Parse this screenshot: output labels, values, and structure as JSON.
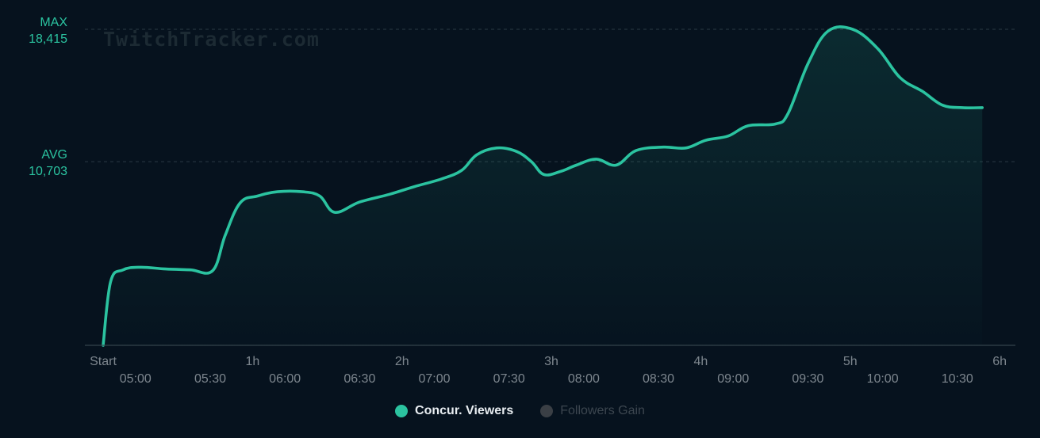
{
  "watermark": "TwitchTracker.com",
  "colors": {
    "background": "#06121e",
    "line": "#2bc3a0",
    "grid": "#2a3a44",
    "label": "#2bc3a0",
    "tick": "#7d868e",
    "inactive": "#3c464f"
  },
  "chart_data": {
    "type": "area",
    "ref_lines": [
      {
        "label": "MAX",
        "value_label": "18,415",
        "value": 18415
      },
      {
        "label": "AVG",
        "value_label": "10,703",
        "value": 10703
      }
    ],
    "ylim": [
      0,
      18415
    ],
    "xlim_minutes": [
      0,
      370
    ],
    "x_ticks_elapsed": [
      {
        "label": "Start",
        "minute": 0
      },
      {
        "label": "1h",
        "minute": 60
      },
      {
        "label": "2h",
        "minute": 120
      },
      {
        "label": "3h",
        "minute": 180
      },
      {
        "label": "4h",
        "minute": 240
      },
      {
        "label": "5h",
        "minute": 300
      },
      {
        "label": "6h",
        "minute": 360
      }
    ],
    "x_ticks_clock": [
      {
        "label": "05:00",
        "minute": 13
      },
      {
        "label": "05:30",
        "minute": 43
      },
      {
        "label": "06:00",
        "minute": 73
      },
      {
        "label": "06:30",
        "minute": 103
      },
      {
        "label": "07:00",
        "minute": 133
      },
      {
        "label": "07:30",
        "minute": 163
      },
      {
        "label": "08:00",
        "minute": 193
      },
      {
        "label": "08:30",
        "minute": 223
      },
      {
        "label": "09:00",
        "minute": 253
      },
      {
        "label": "09:30",
        "minute": 283
      },
      {
        "label": "10:00",
        "minute": 313
      },
      {
        "label": "10:30",
        "minute": 343
      }
    ],
    "series": [
      {
        "name": "Concur. Viewers",
        "active": true,
        "points": [
          [
            0,
            0
          ],
          [
            3,
            3700
          ],
          [
            8,
            4400
          ],
          [
            15,
            4550
          ],
          [
            25,
            4450
          ],
          [
            35,
            4400
          ],
          [
            44,
            4350
          ],
          [
            49,
            6400
          ],
          [
            55,
            8300
          ],
          [
            62,
            8700
          ],
          [
            70,
            8950
          ],
          [
            80,
            8950
          ],
          [
            87,
            8700
          ],
          [
            93,
            7750
          ],
          [
            103,
            8350
          ],
          [
            115,
            8800
          ],
          [
            125,
            9250
          ],
          [
            136,
            9700
          ],
          [
            144,
            10200
          ],
          [
            150,
            11100
          ],
          [
            158,
            11500
          ],
          [
            166,
            11300
          ],
          [
            172,
            10700
          ],
          [
            177,
            9950
          ],
          [
            184,
            10150
          ],
          [
            190,
            10500
          ],
          [
            198,
            10850
          ],
          [
            206,
            10500
          ],
          [
            214,
            11350
          ],
          [
            225,
            11550
          ],
          [
            234,
            11500
          ],
          [
            242,
            11950
          ],
          [
            251,
            12200
          ],
          [
            259,
            12800
          ],
          [
            270,
            12900
          ],
          [
            275,
            13500
          ],
          [
            283,
            16400
          ],
          [
            291,
            18300
          ],
          [
            301,
            18415
          ],
          [
            311,
            17300
          ],
          [
            320,
            15600
          ],
          [
            329,
            14800
          ],
          [
            337,
            14000
          ],
          [
            345,
            13850
          ],
          [
            353,
            13850
          ]
        ]
      },
      {
        "name": "Followers Gain",
        "active": false,
        "points": []
      }
    ]
  }
}
